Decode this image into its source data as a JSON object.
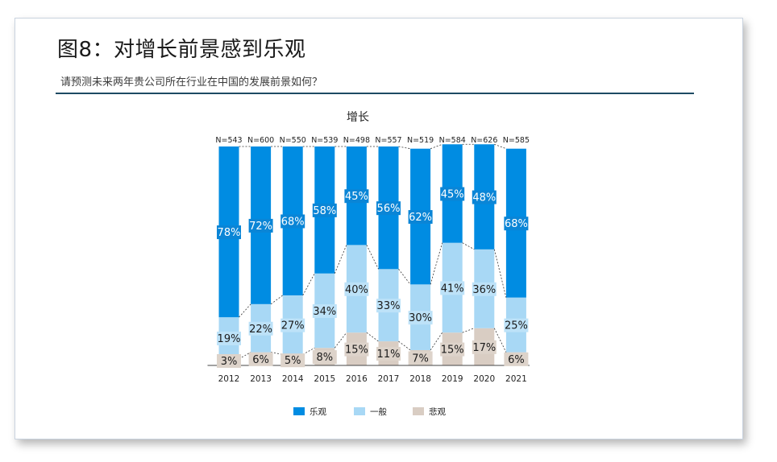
{
  "header": {
    "title": "图8：对增长前景感到乐观",
    "subtitle": "请预测未来两年贵公司所在行业在中国的发展前景如何？"
  },
  "chart_data": {
    "type": "bar",
    "stacked": true,
    "title": "增长",
    "categories": [
      "2012",
      "2013",
      "2014",
      "2015",
      "2016",
      "2017",
      "2018",
      "2019",
      "2020",
      "2021"
    ],
    "sample_sizes": [
      "N=543",
      "N=600",
      "N=550",
      "N=539",
      "N=498",
      "N=557",
      "N=519",
      "N=584",
      "N=626",
      "N=585"
    ],
    "series": [
      {
        "name": "悲观",
        "color": "#d9cdc3",
        "values": [
          3,
          6,
          5,
          8,
          15,
          11,
          7,
          15,
          17,
          6
        ]
      },
      {
        "name": "一般",
        "color": "#a8d8f5",
        "values": [
          19,
          22,
          27,
          34,
          40,
          33,
          30,
          41,
          36,
          25
        ]
      },
      {
        "name": "乐观",
        "color": "#008ce2",
        "values": [
          78,
          72,
          68,
          58,
          45,
          56,
          62,
          45,
          48,
          68
        ]
      }
    ],
    "legend": [
      "乐观",
      "一般",
      "悲观"
    ],
    "legend_position": "bottom",
    "ylim": [
      0,
      100
    ],
    "value_suffix": "%"
  }
}
